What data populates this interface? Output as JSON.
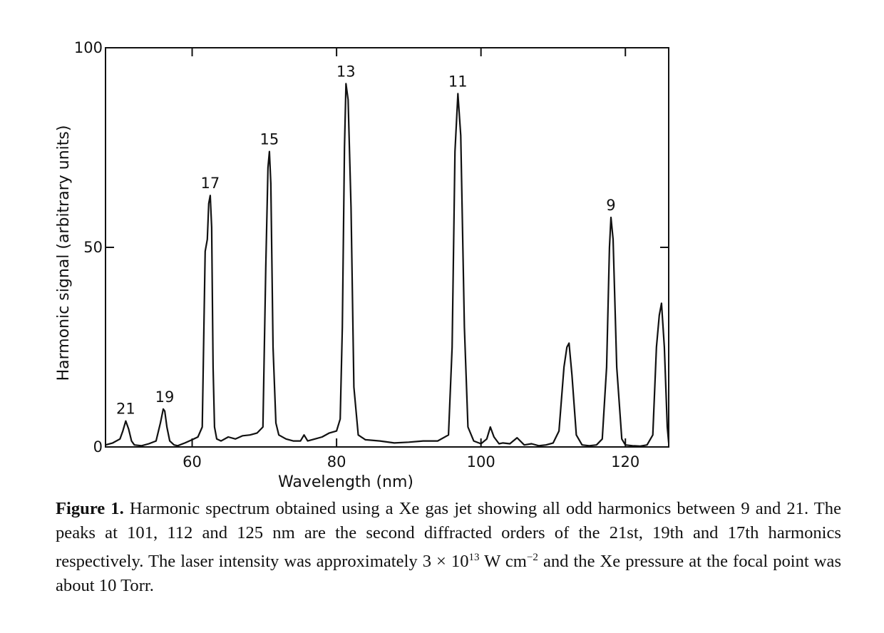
{
  "chart_data": {
    "type": "line",
    "title": "",
    "xlabel": "Wavelength (nm)",
    "ylabel": "Harmonic signal (arbitrary units)",
    "xlim": [
      48,
      126
    ],
    "ylim": [
      0,
      100
    ],
    "x_ticks": [
      60,
      80,
      100,
      120
    ],
    "y_ticks": [
      0,
      50,
      100
    ],
    "x_tick_labels": [
      "60",
      "80",
      "100",
      "120"
    ],
    "y_tick_labels": [
      "0",
      "50",
      "100"
    ],
    "grid": false,
    "legend": "none",
    "peaks": [
      {
        "label": "21",
        "x": 50.8,
        "y": 6.5
      },
      {
        "label": "19",
        "x": 56.2,
        "y": 9.5
      },
      {
        "label": "17",
        "x": 62.5,
        "y": 63
      },
      {
        "label": "15",
        "x": 70.7,
        "y": 74
      },
      {
        "label": "13",
        "x": 81.3,
        "y": 91
      },
      {
        "label": "11",
        "x": 96.8,
        "y": 88.5
      },
      {
        "label": "",
        "x": 101.3,
        "y": 5
      },
      {
        "label": "",
        "x": 105.0,
        "y": 2.3
      },
      {
        "label": "",
        "x": 112.2,
        "y": 26
      },
      {
        "label": "9",
        "x": 118.0,
        "y": 57.5
      },
      {
        "label": "",
        "x": 125.0,
        "y": 36
      }
    ],
    "series": [
      {
        "name": "",
        "x": [
          48,
          49,
          50,
          50.4,
          50.8,
          51.2,
          51.6,
          52,
          53,
          54,
          55,
          55.6,
          56.0,
          56.2,
          56.5,
          56.9,
          57.5,
          58,
          59,
          60,
          60.8,
          61.4,
          61.8,
          62.1,
          62.3,
          62.5,
          62.7,
          62.9,
          63.1,
          63.4,
          64,
          65,
          66,
          67,
          68,
          69,
          69.8,
          70.2,
          70.5,
          70.7,
          70.9,
          71.2,
          71.6,
          72,
          73,
          74,
          75,
          75.5,
          76,
          77,
          78,
          79,
          80,
          80.5,
          80.8,
          81.1,
          81.3,
          81.6,
          82.0,
          82.4,
          83,
          84,
          86,
          88,
          90,
          92,
          94,
          95.5,
          96.0,
          96.4,
          96.8,
          97.2,
          97.7,
          98.2,
          99,
          100,
          100.8,
          101.3,
          101.8,
          102.5,
          103,
          104,
          105,
          106,
          107,
          108,
          109,
          110,
          110.8,
          111.5,
          111.9,
          112.2,
          112.6,
          113.2,
          114,
          115,
          116,
          116.8,
          117.4,
          117.8,
          118.0,
          118.3,
          118.8,
          119.5,
          120,
          121,
          122,
          123,
          123.8,
          124.3,
          124.7,
          125.0,
          125.4,
          125.8,
          126
        ],
        "y": [
          0.5,
          1.0,
          2.0,
          4.0,
          6.5,
          4.5,
          1.5,
          0.5,
          0.3,
          0.8,
          1.5,
          6.0,
          9.5,
          9.0,
          5.0,
          1.5,
          0.5,
          0.3,
          1.0,
          1.8,
          2.5,
          5.0,
          49.0,
          52.0,
          61.0,
          63.0,
          55.0,
          20.0,
          5.0,
          2.0,
          1.5,
          2.5,
          2.0,
          2.8,
          3.0,
          3.5,
          5.0,
          45.0,
          70.0,
          74.0,
          66.0,
          25.0,
          6.0,
          3.0,
          2.0,
          1.5,
          1.5,
          3.0,
          1.5,
          2.0,
          2.5,
          3.5,
          4.0,
          7.0,
          30.0,
          75.0,
          91.0,
          87.0,
          60.0,
          15.0,
          3.0,
          1.8,
          1.5,
          1.0,
          1.2,
          1.5,
          1.5,
          3.0,
          25.0,
          74.0,
          88.5,
          78.0,
          30.0,
          5.0,
          1.5,
          0.8,
          2.0,
          5.0,
          2.5,
          0.8,
          1.0,
          0.8,
          2.3,
          0.5,
          0.8,
          0.3,
          0.5,
          1.0,
          4.0,
          20.0,
          25.0,
          26.0,
          18.0,
          3.0,
          0.5,
          0.3,
          0.5,
          2.0,
          20.0,
          50.0,
          57.5,
          52.0,
          20.0,
          2.0,
          0.5,
          0.3,
          0.2,
          0.5,
          3.0,
          25.0,
          33.0,
          36.0,
          25.0,
          5.0,
          1.0
        ]
      }
    ]
  },
  "caption": {
    "label": "Figure 1.",
    "lines": [
      "Harmonic spectrum obtained using a Xe gas jet showing all odd harmonics",
      "between 9 and 21.  The peaks at 101, 112 and 125 nm are the second diffracted orders of",
      "the 21st, 19th and 17th harmonics respectively.  The laser intensity was approximately"
    ],
    "line4_pre": "3 × 10",
    "line4_sup1": "13",
    "line4_mid": " W cm",
    "line4_sup2": "−2",
    "line4_post": " and the Xe pressure at the focal point was about 10 Torr."
  }
}
